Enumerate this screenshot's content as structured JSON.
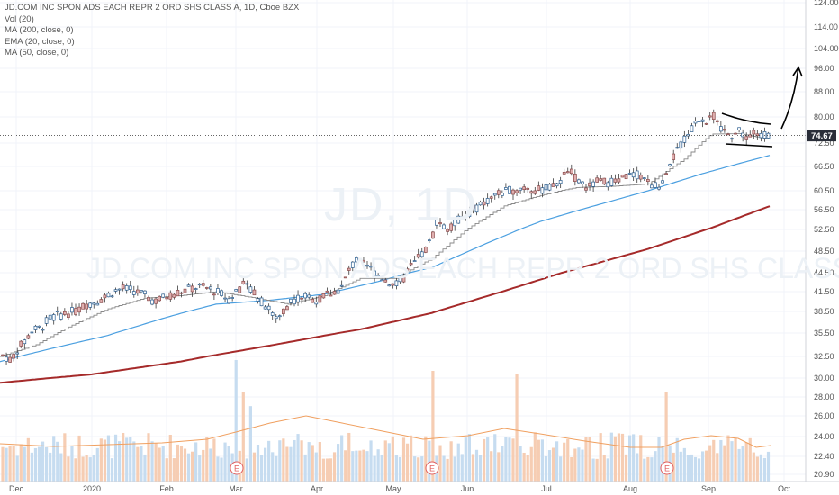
{
  "legend": {
    "title": "JD.COM INC SPON ADS EACH REPR 2 ORD SHS CLASS A, 1D, Cboe BZX",
    "vol": "Vol (20)",
    "ma200": "MA (200, close, 0)",
    "ema20": "EMA (20, close, 0)",
    "ma50": "MA (50, close, 0)"
  },
  "watermark": {
    "symbol": "JD, 1D",
    "name": "JD.COM INC SPON ADS EACH REPR 2 ORD SHS CLASS A"
  },
  "last_price_label": "74.67",
  "colors": {
    "up": "#ffffff",
    "up_outline": "#2a5d8f",
    "down": "#e0b0b0",
    "ma200": "#a52a2a",
    "ma50": "#4a9fe0",
    "ema20": "#888888",
    "vol_up": "#c6dcf0",
    "vol_down": "#f6cdb3",
    "vol_ma": "#f0a060",
    "annotation": "#000000"
  },
  "chart_data": {
    "type": "candlestick",
    "title": "JD.COM INC SPON ADS EACH REPR 2 ORD SHS CLASS A, 1D, Cboe BZX",
    "x_ticks": [
      "Dec",
      "2020",
      "Feb",
      "Mar",
      "Apr",
      "May",
      "Jun",
      "Jul",
      "Aug",
      "Sep",
      "Oct"
    ],
    "y_ticks": [
      "20.90",
      "22.40",
      "24.00",
      "26.00",
      "28.00",
      "30.00",
      "32.50",
      "35.50",
      "38.50",
      "41.50",
      "44.50",
      "48.50",
      "52.50",
      "56.50",
      "60.50",
      "66.50",
      "72.50",
      "80.00",
      "88.00",
      "96.00",
      "104.00",
      "114.00",
      "124.00"
    ],
    "ylim": [
      20.9,
      124
    ],
    "log_scale": true,
    "last_price": 74.67,
    "earnings_markers": [
      "E",
      "E",
      "E"
    ],
    "price_path": [
      [
        0,
        32.8
      ],
      [
        6,
        32.5
      ],
      [
        12,
        32.0
      ],
      [
        20,
        33.5
      ],
      [
        28,
        34.5
      ],
      [
        35,
        35.8
      ],
      [
        45,
        36.2
      ],
      [
        55,
        37.5
      ],
      [
        65,
        38.0
      ],
      [
        75,
        38.3
      ],
      [
        85,
        38.6
      ],
      [
        95,
        39.5
      ],
      [
        105,
        40.0
      ],
      [
        115,
        40.5
      ],
      [
        125,
        41.5
      ],
      [
        135,
        42.0
      ],
      [
        148,
        41.7
      ],
      [
        160,
        41.0
      ],
      [
        172,
        40.0
      ],
      [
        182,
        40.6
      ],
      [
        195,
        41.3
      ],
      [
        210,
        41.9
      ],
      [
        220,
        42.3
      ],
      [
        232,
        42.0
      ],
      [
        245,
        41.2
      ],
      [
        255,
        40.3
      ],
      [
        262,
        41.6
      ],
      [
        270,
        42.5
      ],
      [
        280,
        42.0
      ],
      [
        290,
        40.0
      ],
      [
        298,
        39.0
      ],
      [
        305,
        37.5
      ],
      [
        312,
        38.0
      ],
      [
        322,
        40.0
      ],
      [
        335,
        40.8
      ],
      [
        345,
        40.5
      ],
      [
        355,
        40.2
      ],
      [
        362,
        41.0
      ],
      [
        372,
        41.5
      ],
      [
        380,
        42.2
      ],
      [
        388,
        45.0
      ],
      [
        396,
        46.8
      ],
      [
        404,
        46.0
      ],
      [
        412,
        45.2
      ],
      [
        420,
        44.2
      ],
      [
        430,
        43.2
      ],
      [
        440,
        42.5
      ],
      [
        448,
        43.5
      ],
      [
        456,
        45.5
      ],
      [
        464,
        47.0
      ],
      [
        472,
        48.5
      ],
      [
        480,
        51.0
      ],
      [
        486,
        55.0
      ],
      [
        492,
        53.0
      ],
      [
        500,
        52.5
      ],
      [
        508,
        54.5
      ],
      [
        516,
        55.0
      ],
      [
        525,
        56.5
      ],
      [
        535,
        57.5
      ],
      [
        545,
        59.0
      ],
      [
        555,
        60.0
      ],
      [
        565,
        60.5
      ],
      [
        575,
        61.0
      ],
      [
        585,
        61.5
      ],
      [
        595,
        60.5
      ],
      [
        605,
        61.0
      ],
      [
        615,
        61.5
      ],
      [
        625,
        63.5
      ],
      [
        630,
        66.0
      ],
      [
        636,
        64.5
      ],
      [
        645,
        62.0
      ],
      [
        655,
        61.5
      ],
      [
        665,
        63.0
      ],
      [
        675,
        62.5
      ],
      [
        685,
        63.0
      ],
      [
        695,
        64.0
      ],
      [
        705,
        64.5
      ],
      [
        715,
        64.0
      ],
      [
        722,
        62.0
      ],
      [
        730,
        61.8
      ],
      [
        738,
        62.5
      ],
      [
        744,
        66.0
      ],
      [
        750,
        70.0
      ],
      [
        756,
        72.0
      ],
      [
        762,
        74.0
      ],
      [
        770,
        77.0
      ],
      [
        778,
        80.0
      ],
      [
        785,
        79.0
      ],
      [
        790,
        82.0
      ],
      [
        796,
        78.0
      ],
      [
        802,
        75.5
      ],
      [
        808,
        76.5
      ],
      [
        814,
        74.5
      ],
      [
        820,
        76.0
      ],
      [
        826,
        75.0
      ],
      [
        832,
        74.0
      ],
      [
        838,
        75.5
      ],
      [
        844,
        74.2
      ],
      [
        850,
        75.3
      ],
      [
        856,
        74.67
      ]
    ],
    "ma200_path": [
      [
        0,
        29.5
      ],
      [
        100,
        30.4
      ],
      [
        200,
        31.9
      ],
      [
        300,
        33.9
      ],
      [
        400,
        36.0
      ],
      [
        480,
        38.3
      ],
      [
        560,
        41.6
      ],
      [
        640,
        45.2
      ],
      [
        720,
        48.9
      ],
      [
        790,
        52.8
      ],
      [
        856,
        57.3
      ]
    ],
    "ma50_path": [
      [
        0,
        31.9
      ],
      [
        60,
        33.6
      ],
      [
        120,
        35.2
      ],
      [
        180,
        37.5
      ],
      [
        240,
        39.6
      ],
      [
        300,
        40.2
      ],
      [
        360,
        41.1
      ],
      [
        420,
        43.1
      ],
      [
        480,
        45.5
      ],
      [
        540,
        49.9
      ],
      [
        600,
        54.1
      ],
      [
        660,
        57.3
      ],
      [
        720,
        60.5
      ],
      [
        780,
        64.7
      ],
      [
        856,
        69.4
      ]
    ],
    "ema20_path": [
      [
        0,
        32.5
      ],
      [
        40,
        34.0
      ],
      [
        80,
        36.6
      ],
      [
        120,
        38.9
      ],
      [
        160,
        40.5
      ],
      [
        200,
        40.9
      ],
      [
        240,
        41.5
      ],
      [
        280,
        40.6
      ],
      [
        320,
        39.6
      ],
      [
        360,
        40.9
      ],
      [
        400,
        43.6
      ],
      [
        440,
        43.6
      ],
      [
        480,
        47.2
      ],
      [
        520,
        52.8
      ],
      [
        560,
        57.3
      ],
      [
        600,
        59.5
      ],
      [
        640,
        61.3
      ],
      [
        680,
        61.6
      ],
      [
        720,
        62.2
      ],
      [
        760,
        68.4
      ],
      [
        790,
        75.1
      ],
      [
        820,
        75.2
      ],
      [
        856,
        73.5
      ]
    ],
    "volume": {
      "ylim_px": [
        400,
        535
      ],
      "spikes": [
        [
          263,
          400
        ],
        [
          480,
          412
        ],
        [
          574,
          415
        ],
        [
          740,
          435
        ]
      ],
      "ma_path": [
        [
          0,
          493
        ],
        [
          60,
          496
        ],
        [
          120,
          494
        ],
        [
          180,
          492
        ],
        [
          230,
          488
        ],
        [
          262,
          480
        ],
        [
          300,
          470
        ],
        [
          340,
          462
        ],
        [
          380,
          470
        ],
        [
          420,
          478
        ],
        [
          470,
          488
        ],
        [
          520,
          484
        ],
        [
          560,
          476
        ],
        [
          600,
          482
        ],
        [
          650,
          490
        ],
        [
          700,
          497
        ],
        [
          735,
          497
        ],
        [
          760,
          488
        ],
        [
          790,
          484
        ],
        [
          820,
          487
        ],
        [
          840,
          497
        ],
        [
          856,
          495
        ]
      ]
    },
    "annotations": [
      {
        "type": "trendline-upper",
        "points": [
          [
            802,
            126
          ],
          [
            856,
            138
          ]
        ]
      },
      {
        "type": "trendline-lower",
        "points": [
          [
            806,
            160
          ],
          [
            858,
            163
          ]
        ]
      },
      {
        "type": "arrow-up",
        "points": [
          [
            868,
            143
          ],
          [
            887,
            75
          ]
        ]
      }
    ]
  }
}
